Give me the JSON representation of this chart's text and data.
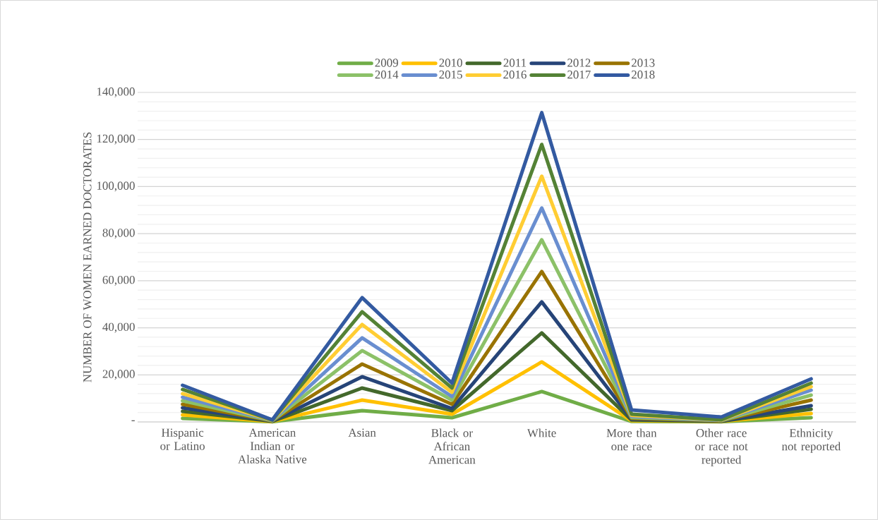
{
  "chart_data": {
    "type": "line",
    "ylabel": "NUMBER OF WOMEN EARNED DOCTORATES",
    "categories": [
      "Hispanic or Latino",
      "American Indian or Alaska Native",
      "Asian",
      "Black or African American",
      "White",
      "More than one race",
      "Other race or race not reported",
      "Ethnicity not reported"
    ],
    "series": [
      {
        "name": "2009",
        "color": "#70ad47",
        "values": [
          1500,
          90,
          4800,
          1800,
          12900,
          200,
          100,
          1800
        ]
      },
      {
        "name": "2010",
        "color": "#ffc000",
        "values": [
          3000,
          180,
          9300,
          3300,
          25500,
          500,
          200,
          3600
        ]
      },
      {
        "name": "2011",
        "color": "#43682b",
        "values": [
          4500,
          270,
          14400,
          4800,
          37800,
          800,
          300,
          5400
        ]
      },
      {
        "name": "2012",
        "color": "#264478",
        "values": [
          6000,
          360,
          19200,
          5700,
          51000,
          1100,
          400,
          6900
        ]
      },
      {
        "name": "2013",
        "color": "#997300",
        "values": [
          7500,
          450,
          24600,
          7500,
          63900,
          1500,
          500,
          9300
        ]
      },
      {
        "name": "2014",
        "color": "#8cc168",
        "values": [
          9000,
          540,
          30300,
          9300,
          77400,
          1900,
          600,
          11400
        ]
      },
      {
        "name": "2015",
        "color": "#698ed0",
        "values": [
          10500,
          630,
          35700,
          10800,
          90900,
          2300,
          700,
          13500
        ]
      },
      {
        "name": "2016",
        "color": "#ffcd33",
        "values": [
          12000,
          720,
          41400,
          12600,
          104400,
          2800,
          800,
          15000
        ]
      },
      {
        "name": "2017",
        "color": "#548235",
        "values": [
          13800,
          810,
          46800,
          14400,
          117900,
          3300,
          900,
          16500
        ]
      },
      {
        "name": "2018",
        "color": "#335aa1",
        "values": [
          15600,
          900,
          52800,
          16500,
          131400,
          5100,
          2100,
          18300
        ]
      }
    ],
    "ylim": [
      0,
      140000
    ],
    "yticks": [
      {
        "value": 0,
        "label": "-"
      },
      {
        "value": 20000,
        "label": "20,000"
      },
      {
        "value": 40000,
        "label": "40,000"
      },
      {
        "value": 60000,
        "label": "60,000"
      },
      {
        "value": 80000,
        "label": "80,000"
      },
      {
        "value": 100000,
        "label": "100,000"
      },
      {
        "value": 120000,
        "label": "120,000"
      },
      {
        "value": 140000,
        "label": "140,000"
      }
    ],
    "grid": "y",
    "legend": "top",
    "marker": "none",
    "line_style": "solid"
  }
}
